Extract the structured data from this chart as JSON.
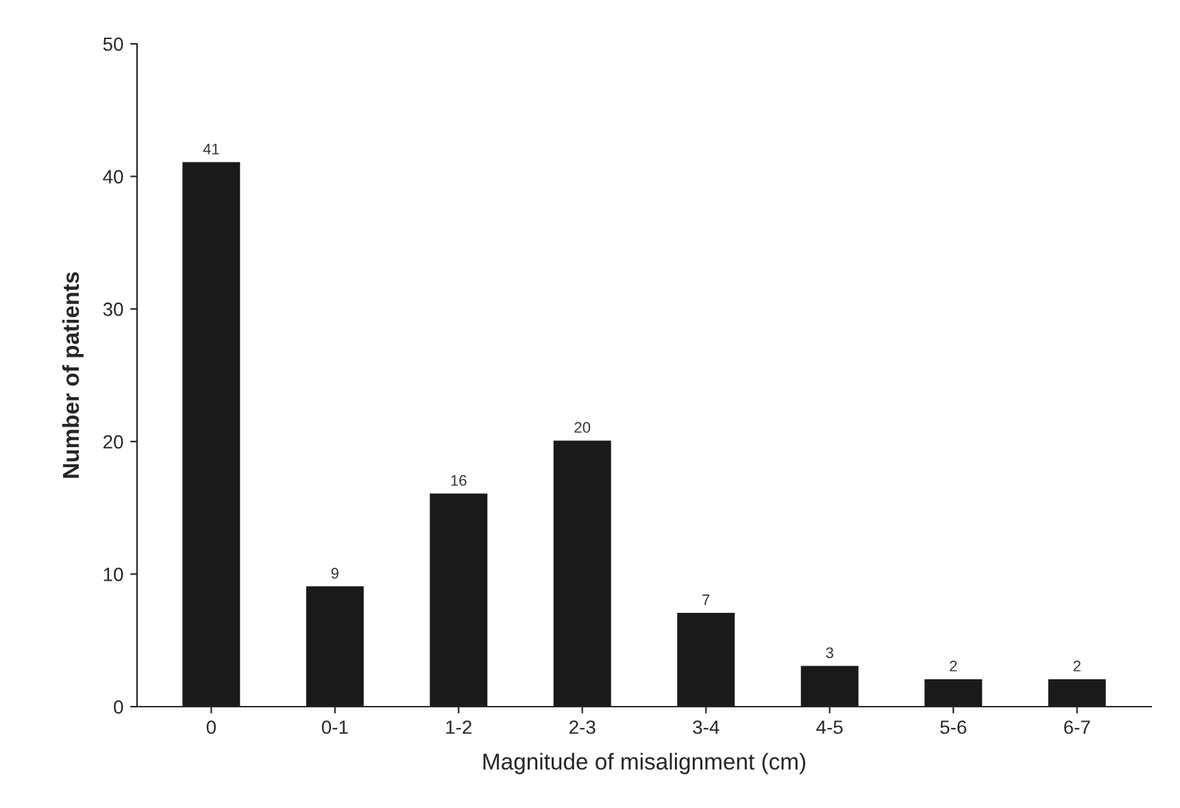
{
  "chart_data": {
    "type": "bar",
    "xlabel": "Magnitude of misalignment (cm)",
    "ylabel": "Number of patients",
    "categories": [
      "0",
      "0-1",
      "1-2",
      "2-3",
      "3-4",
      "4-5",
      "5-6",
      "6-7"
    ],
    "values": [
      41,
      9,
      16,
      20,
      7,
      3,
      2,
      2
    ],
    "color": "#1a1a1a",
    "ylim": [
      0,
      50
    ],
    "yticks": [
      0,
      10,
      20,
      30,
      40,
      50
    ],
    "grid": false,
    "data_labels": true
  }
}
